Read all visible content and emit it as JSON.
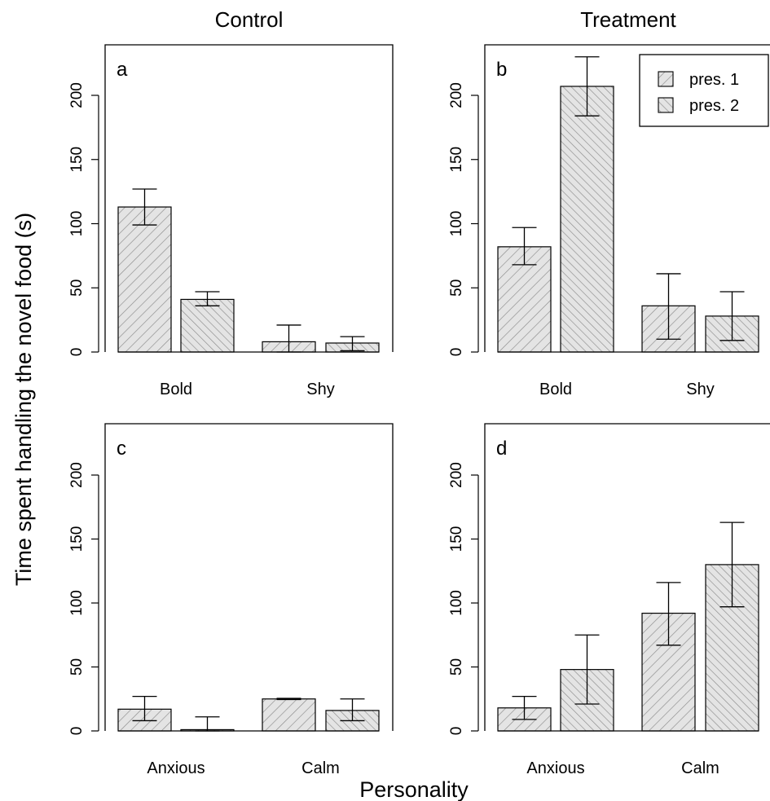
{
  "figure": {
    "ylabel": "Time spent handling the novel food (s)",
    "xlabel": "Personality"
  },
  "legend": {
    "items": [
      {
        "label": "pres. 1",
        "hatch": "forward"
      },
      {
        "label": "pres. 2",
        "hatch": "back"
      }
    ]
  },
  "colors": {
    "bar_fill": "#e4e4e4",
    "hatch": "#8c8c8c",
    "axis": "#000000"
  },
  "chart_data": [
    {
      "type": "bar",
      "panel": "a",
      "title": "Control",
      "categories": [
        "Bold",
        "Shy"
      ],
      "series": [
        {
          "name": "pres. 1",
          "values": [
            113,
            8
          ],
          "err_low": [
            99,
            0
          ],
          "err_high": [
            127,
            21
          ]
        },
        {
          "name": "pres. 2",
          "values": [
            41,
            7
          ],
          "err_low": [
            36,
            1
          ],
          "err_high": [
            47,
            12
          ]
        }
      ],
      "ylim": [
        0,
        240
      ],
      "yticks": [
        0,
        50,
        100,
        150,
        200
      ],
      "legend": false
    },
    {
      "type": "bar",
      "panel": "b",
      "title": "Treatment",
      "categories": [
        "Bold",
        "Shy"
      ],
      "series": [
        {
          "name": "pres. 1",
          "values": [
            82,
            36
          ],
          "err_low": [
            68,
            10
          ],
          "err_high": [
            97,
            61
          ]
        },
        {
          "name": "pres. 2",
          "values": [
            207,
            28
          ],
          "err_low": [
            184,
            9
          ],
          "err_high": [
            230,
            47
          ]
        }
      ],
      "ylim": [
        0,
        240
      ],
      "yticks": [
        0,
        50,
        100,
        150,
        200
      ],
      "legend": "top-right"
    },
    {
      "type": "bar",
      "panel": "c",
      "title": "",
      "categories": [
        "Anxious",
        "Calm"
      ],
      "series": [
        {
          "name": "pres. 1",
          "values": [
            17,
            25
          ],
          "err_low": [
            8,
            24.5
          ],
          "err_high": [
            27,
            25.5
          ]
        },
        {
          "name": "pres. 2",
          "values": [
            1,
            16
          ],
          "err_low": [
            0,
            8
          ],
          "err_high": [
            11,
            25
          ]
        }
      ],
      "ylim": [
        0,
        240
      ],
      "yticks": [
        0,
        50,
        100,
        150,
        200
      ],
      "legend": false
    },
    {
      "type": "bar",
      "panel": "d",
      "title": "",
      "categories": [
        "Anxious",
        "Calm"
      ],
      "series": [
        {
          "name": "pres. 1",
          "values": [
            18,
            92
          ],
          "err_low": [
            9,
            67
          ],
          "err_high": [
            27,
            116
          ]
        },
        {
          "name": "pres. 2",
          "values": [
            48,
            130
          ],
          "err_low": [
            21,
            97
          ],
          "err_high": [
            75,
            163
          ]
        }
      ],
      "ylim": [
        0,
        240
      ],
      "yticks": [
        0,
        50,
        100,
        150,
        200
      ],
      "legend": false
    }
  ]
}
